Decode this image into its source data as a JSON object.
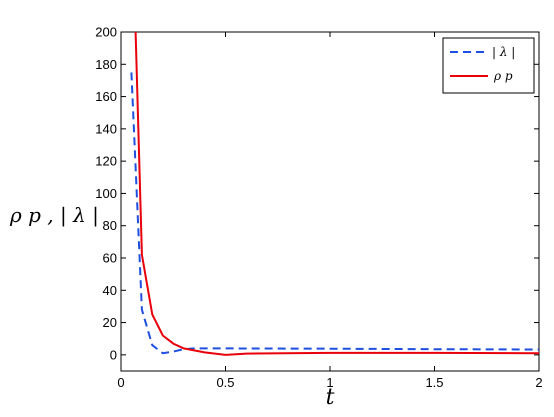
{
  "chart_data": {
    "type": "line",
    "xlabel": "t",
    "ylabel": "ρ p ,  | λ |",
    "xlim": [
      0,
      2
    ],
    "ylim": [
      -10,
      200
    ],
    "x_ticks": [
      "0",
      "0.5",
      "1",
      "1.5",
      "2"
    ],
    "y_ticks": [
      "0",
      "20",
      "40",
      "60",
      "80",
      "100",
      "120",
      "140",
      "160",
      "180",
      "200"
    ],
    "grid": false,
    "legend_position": "top-right",
    "series": [
      {
        "name": "| λ |",
        "color": "#1f4fe0",
        "style": "dashed",
        "x": [
          0.05,
          0.1,
          0.15,
          0.2,
          0.25,
          0.3,
          0.35,
          0.5,
          1.0,
          1.5,
          2.0
        ],
        "y": [
          175,
          28,
          6,
          1,
          2,
          3.5,
          4,
          4,
          3.8,
          3.5,
          3.3
        ]
      },
      {
        "name": "ρ p",
        "color": "#e8000b",
        "style": "solid",
        "x": [
          0.07,
          0.1,
          0.15,
          0.2,
          0.25,
          0.3,
          0.4,
          0.5,
          0.6,
          1.0,
          1.5,
          2.0
        ],
        "y": [
          200,
          62,
          25,
          12,
          7,
          4,
          1.5,
          0,
          0.8,
          1.2,
          1.2,
          1.0
        ]
      }
    ]
  }
}
